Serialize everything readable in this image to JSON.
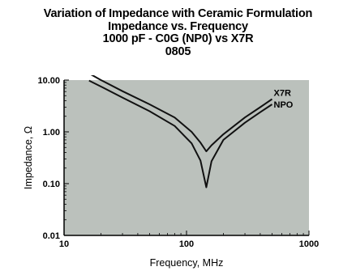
{
  "chart_data": {
    "type": "line",
    "title_lines": [
      "Variation of Impedance with Ceramic Formulation",
      "Impedance vs. Frequency",
      "1000 pF - C0G (NP0) vs X7R",
      "0805"
    ],
    "xlabel": "Frequency, MHz",
    "ylabel": "Impedance, Ω",
    "x_scale": "log",
    "y_scale": "log",
    "xlim": [
      10,
      1000
    ],
    "ylim": [
      0.01,
      10
    ],
    "x_ticks": [
      10,
      100,
      1000
    ],
    "x_tick_labels": [
      "10",
      "100",
      "1000"
    ],
    "y_ticks": [
      10,
      1,
      0.1,
      0.01
    ],
    "y_tick_labels": [
      "10.00",
      "1.00",
      "0.10",
      "0.01"
    ],
    "grid": false,
    "plot_background": "#bbc1bc",
    "line_color": "#111111",
    "series": [
      {
        "name": "X7R",
        "x": [
          16,
          20,
          30,
          50,
          80,
          110,
          130,
          145,
          160,
          200,
          300,
          400,
          500
        ],
        "y": [
          13.5,
          10,
          6.1,
          3.4,
          1.9,
          1.0,
          0.62,
          0.42,
          0.55,
          0.9,
          1.9,
          3.0,
          4.3
        ]
      },
      {
        "name": "NPO",
        "x": [
          16,
          20,
          30,
          50,
          80,
          110,
          130,
          145,
          160,
          200,
          300,
          400,
          500
        ],
        "y": [
          9.8,
          7.5,
          4.6,
          2.5,
          1.3,
          0.6,
          0.28,
          0.085,
          0.27,
          0.7,
          1.5,
          2.4,
          3.4
        ]
      }
    ]
  }
}
